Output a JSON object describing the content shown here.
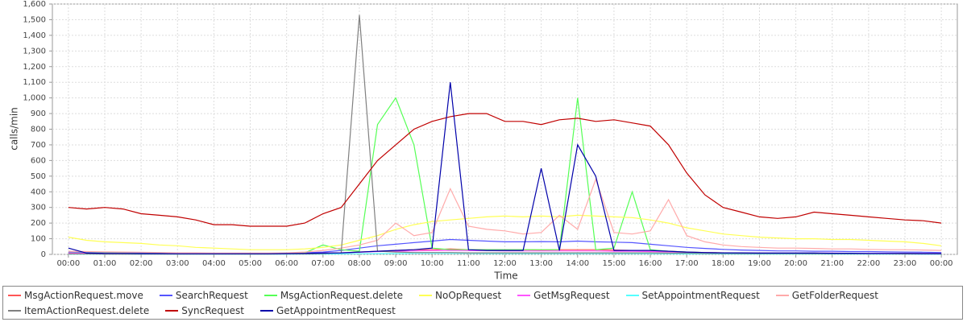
{
  "chart_data": {
    "type": "line",
    "x_label": "Time",
    "y_label": "calls/min",
    "x": [
      0,
      0.5,
      1,
      1.5,
      2,
      2.5,
      3,
      3.5,
      4,
      4.5,
      5,
      5.5,
      6,
      6.5,
      7,
      7.5,
      8,
      8.5,
      9,
      9.5,
      10,
      10.5,
      11,
      11.5,
      12,
      12.5,
      13,
      13.5,
      14,
      14.5,
      15,
      15.5,
      16,
      16.5,
      17,
      17.5,
      18,
      18.5,
      19,
      19.5,
      20,
      20.5,
      21,
      21.5,
      22,
      22.5,
      23,
      23.5,
      24
    ],
    "xlim": [
      -0.44,
      24.44
    ],
    "xticks": [
      {
        "value": 0,
        "label": "00:00"
      },
      {
        "value": 1,
        "label": "01:00"
      },
      {
        "value": 2,
        "label": "02:00"
      },
      {
        "value": 3,
        "label": "03:00"
      },
      {
        "value": 4,
        "label": "04:00"
      },
      {
        "value": 5,
        "label": "05:00"
      },
      {
        "value": 6,
        "label": "06:00"
      },
      {
        "value": 7,
        "label": "07:00"
      },
      {
        "value": 8,
        "label": "08:00"
      },
      {
        "value": 9,
        "label": "09:00"
      },
      {
        "value": 10,
        "label": "10:00"
      },
      {
        "value": 11,
        "label": "11:00"
      },
      {
        "value": 12,
        "label": "12:00"
      },
      {
        "value": 13,
        "label": "13:00"
      },
      {
        "value": 14,
        "label": "14:00"
      },
      {
        "value": 15,
        "label": "15:00"
      },
      {
        "value": 16,
        "label": "16:00"
      },
      {
        "value": 17,
        "label": "17:00"
      },
      {
        "value": 18,
        "label": "18:00"
      },
      {
        "value": 19,
        "label": "19:00"
      },
      {
        "value": 20,
        "label": "20:00"
      },
      {
        "value": 21,
        "label": "21:00"
      },
      {
        "value": 22,
        "label": "22:00"
      },
      {
        "value": 23,
        "label": "23:00"
      },
      {
        "value": 24,
        "label": "00:00"
      }
    ],
    "ylim": [
      0,
      1600
    ],
    "yticks": [
      0,
      100,
      200,
      300,
      400,
      500,
      600,
      700,
      800,
      900,
      {
        "value": 1000,
        "label": "1,000"
      },
      {
        "value": 1100,
        "label": "1,100"
      },
      {
        "value": 1200,
        "label": "1,200"
      },
      {
        "value": 1300,
        "label": "1,300"
      },
      {
        "value": 1400,
        "label": "1,400"
      },
      {
        "value": 1500,
        "label": "1,500"
      },
      {
        "value": 1600,
        "label": "1,600"
      }
    ],
    "grid": true,
    "series": [
      {
        "name": "MsgActionRequest.move",
        "color": "#ff5555",
        "values": [
          5,
          5,
          5,
          5,
          4,
          4,
          4,
          3,
          3,
          3,
          3,
          3,
          4,
          5,
          8,
          10,
          15,
          20,
          25,
          30,
          30,
          35,
          30,
          30,
          30,
          30,
          28,
          30,
          30,
          30,
          28,
          25,
          25,
          20,
          15,
          12,
          10,
          8,
          8,
          7,
          7,
          6,
          6,
          5,
          5,
          5,
          5,
          4,
          4
        ]
      },
      {
        "name": "SearchRequest",
        "color": "#5555ff",
        "values": [
          15,
          12,
          12,
          10,
          10,
          8,
          8,
          6,
          6,
          5,
          5,
          6,
          8,
          10,
          15,
          25,
          40,
          55,
          65,
          75,
          85,
          95,
          90,
          85,
          80,
          80,
          82,
          80,
          85,
          80,
          78,
          75,
          65,
          55,
          45,
          38,
          32,
          28,
          25,
          22,
          22,
          20,
          20,
          18,
          18,
          16,
          15,
          14,
          12
        ]
      },
      {
        "name": "MsgActionRequest.delete",
        "color": "#55ff55",
        "values": [
          10,
          8,
          8,
          8,
          6,
          6,
          5,
          5,
          5,
          5,
          5,
          6,
          8,
          10,
          60,
          30,
          20,
          830,
          1000,
          700,
          40,
          30,
          30,
          30,
          30,
          30,
          30,
          30,
          1000,
          30,
          40,
          400,
          30,
          20,
          15,
          12,
          10,
          10,
          8,
          8,
          8,
          8,
          7,
          7,
          6,
          6,
          6,
          5,
          5
        ]
      },
      {
        "name": "NoOpRequest",
        "color": "#ffff55",
        "values": [
          110,
          90,
          80,
          75,
          70,
          60,
          55,
          45,
          40,
          35,
          30,
          30,
          30,
          35,
          45,
          60,
          90,
          120,
          160,
          190,
          210,
          220,
          230,
          240,
          245,
          240,
          245,
          240,
          250,
          245,
          240,
          235,
          220,
          200,
          170,
          150,
          130,
          120,
          110,
          105,
          100,
          100,
          95,
          95,
          90,
          85,
          80,
          70,
          55
        ]
      },
      {
        "name": "GetMsgRequest",
        "color": "#ff55ff",
        "values": [
          8,
          7,
          6,
          6,
          5,
          5,
          4,
          4,
          4,
          4,
          4,
          4,
          5,
          6,
          8,
          10,
          14,
          18,
          20,
          22,
          25,
          25,
          24,
          24,
          22,
          22,
          22,
          22,
          22,
          22,
          20,
          20,
          18,
          16,
          14,
          12,
          10,
          10,
          9,
          9,
          8,
          8,
          8,
          7,
          7,
          7,
          6,
          6,
          6
        ]
      },
      {
        "name": "SetAppointmentRequest",
        "color": "#55ffff",
        "values": [
          2,
          2,
          2,
          2,
          1,
          1,
          1,
          1,
          1,
          1,
          1,
          1,
          1,
          2,
          2,
          3,
          4,
          5,
          5,
          6,
          6,
          6,
          6,
          5,
          5,
          5,
          5,
          5,
          5,
          5,
          5,
          5,
          4,
          4,
          3,
          3,
          3,
          2,
          2,
          2,
          2,
          2,
          2,
          2,
          2,
          2,
          2,
          1,
          1
        ]
      },
      {
        "name": "GetFolderRequest",
        "color": "#ffaaaa",
        "values": [
          20,
          18,
          16,
          15,
          14,
          12,
          10,
          10,
          8,
          8,
          8,
          8,
          10,
          15,
          25,
          40,
          60,
          90,
          200,
          120,
          140,
          420,
          180,
          160,
          150,
          130,
          140,
          250,
          160,
          480,
          140,
          130,
          150,
          350,
          120,
          80,
          60,
          50,
          45,
          40,
          40,
          38,
          35,
          35,
          32,
          30,
          30,
          28,
          25
        ]
      },
      {
        "name": "ItemActionRequest.delete",
        "color": "#808080",
        "values": [
          3,
          3,
          2,
          2,
          2,
          2,
          2,
          2,
          2,
          2,
          2,
          2,
          3,
          3,
          5,
          10,
          1530,
          20,
          15,
          12,
          12,
          12,
          10,
          10,
          10,
          10,
          10,
          10,
          10,
          10,
          10,
          10,
          10,
          8,
          8,
          6,
          6,
          5,
          5,
          5,
          5,
          4,
          4,
          4,
          4,
          4,
          3,
          3,
          3
        ]
      },
      {
        "name": "SyncRequest",
        "color": "#c00000",
        "values": [
          300,
          290,
          300,
          290,
          260,
          250,
          240,
          220,
          190,
          190,
          180,
          180,
          180,
          200,
          260,
          300,
          450,
          600,
          700,
          800,
          850,
          880,
          900,
          900,
          850,
          850,
          830,
          860,
          870,
          850,
          860,
          840,
          820,
          700,
          520,
          380,
          300,
          270,
          240,
          230,
          240,
          270,
          260,
          250,
          240,
          230,
          220,
          215,
          200
        ]
      },
      {
        "name": "GetAppointmentRequest",
        "color": "#0000aa",
        "values": [
          40,
          8,
          6,
          6,
          5,
          5,
          4,
          4,
          4,
          4,
          4,
          4,
          5,
          6,
          8,
          10,
          15,
          20,
          25,
          30,
          40,
          1100,
          30,
          25,
          25,
          25,
          550,
          25,
          700,
          500,
          25,
          25,
          25,
          20,
          15,
          12,
          10,
          10,
          8,
          8,
          8,
          8,
          7,
          7,
          6,
          6,
          6,
          5,
          5
        ]
      }
    ]
  }
}
